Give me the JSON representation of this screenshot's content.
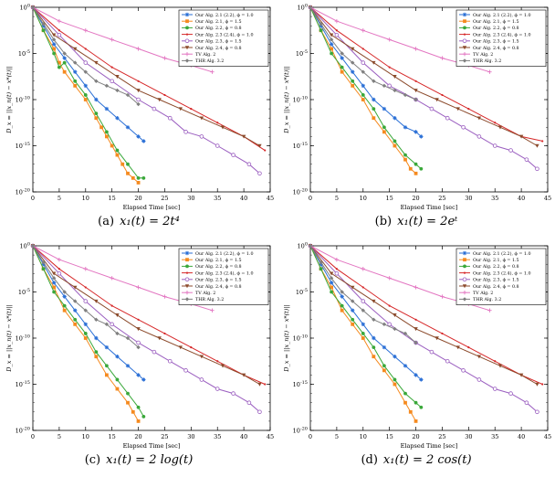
{
  "shared": {
    "xlabel": "Elapsed Time [sec]",
    "ylabel": "D_x = ||x_n(t) − x*(t)||",
    "ylim_exp": [
      -20,
      0
    ],
    "ytick_exps": [
      0,
      -5,
      -10,
      -15,
      -20
    ],
    "xlim": [
      0,
      45
    ],
    "xticks": [
      0,
      5,
      10,
      15,
      20,
      25,
      30,
      35,
      40,
      45
    ],
    "legend_placement": "top-right",
    "series_styles": [
      {
        "name": "Our Alg. 2.1 (2.2), ϕ = 1.0",
        "color": "#2a6fd6",
        "marker": "star"
      },
      {
        "name": "Our Alg. 2.1, ϕ = 1.5",
        "color": "#f58a1f",
        "marker": "square"
      },
      {
        "name": "Our Alg. 2.2, ϕ = 0.8",
        "color": "#3aa83a",
        "marker": "circle"
      },
      {
        "name": "Our Alg. 2.3 (2.4), ϕ = 1.0",
        "color": "#d62728",
        "marker": "dot"
      },
      {
        "name": "Our Alg. 2.3, ϕ = 1.5",
        "color": "#9b5fc0",
        "marker": "circle-open"
      },
      {
        "name": "Our Alg. 2.4, ϕ = 0.8",
        "color": "#8b4a2b",
        "marker": "triangle-down"
      },
      {
        "name": "TV Alg. 2",
        "color": "#e377c2",
        "marker": "plus"
      },
      {
        "name": "THR Alg. 3.2",
        "color": "#808080",
        "marker": "diamond"
      }
    ]
  },
  "captions": [
    {
      "label": "(a)",
      "formula": "x₁(t) = 2t⁴"
    },
    {
      "label": "(b)",
      "formula": "x₁(t) = 2eᵗ"
    },
    {
      "label": "(c)",
      "formula": "x₁(t) = 2 log(t)"
    },
    {
      "label": "(d)",
      "formula": "x₁(t) = 2 cos(t)"
    }
  ],
  "chart_data": [
    {
      "type": "line",
      "title": "",
      "xlabel": "Elapsed Time [sec]",
      "ylabel": "D_x = ||x_n(t) − x*(t)||",
      "y_scale": "log10",
      "series": [
        {
          "name": "Our Alg. 2.1 (2.2), ϕ = 1.0",
          "x": [
            0,
            2,
            4,
            6,
            8,
            10,
            12,
            14,
            16,
            18,
            20,
            21
          ],
          "y_exp": [
            0,
            -2,
            -4,
            -5.5,
            -7,
            -8.5,
            -10,
            -11,
            -12,
            -13,
            -14,
            -14.5
          ]
        },
        {
          "name": "Our Alg. 2.1, ϕ = 1.5",
          "x": [
            0,
            2,
            4,
            5,
            6,
            8,
            10,
            12,
            13,
            14,
            15,
            16,
            17,
            18,
            19,
            20
          ],
          "y_exp": [
            0,
            -2.5,
            -4.5,
            -6,
            -7,
            -8.5,
            -10,
            -12,
            -13,
            -14,
            -15,
            -16,
            -17,
            -18,
            -18.5,
            -19
          ]
        },
        {
          "name": "Our Alg. 2.2, ϕ = 0.8",
          "x": [
            0,
            2,
            4,
            5,
            6,
            8,
            10,
            12,
            14,
            16,
            18,
            20,
            21
          ],
          "y_exp": [
            0,
            -2.5,
            -5,
            -6.5,
            -6,
            -8,
            -9.5,
            -11.5,
            -13.5,
            -15.5,
            -17,
            -18.5,
            -18.5
          ]
        },
        {
          "name": "Our Alg. 2.3 (2.4), ϕ = 1.0",
          "x": [
            0,
            5,
            10,
            15,
            20,
            25,
            30,
            35,
            40,
            44
          ],
          "y_exp": [
            0,
            -2.5,
            -4.5,
            -6.5,
            -8,
            -9.5,
            -11,
            -12.5,
            -14,
            -15.5
          ]
        },
        {
          "name": "Our Alg. 2.3, ϕ = 1.5",
          "x": [
            0,
            5,
            10,
            15,
            20,
            23,
            26,
            29,
            32,
            35,
            38,
            41,
            43
          ],
          "y_exp": [
            0,
            -3,
            -6,
            -8,
            -10,
            -11,
            -12,
            -13.5,
            -14,
            -15,
            -16,
            -17,
            -18
          ]
        },
        {
          "name": "Our Alg. 2.4, ϕ = 0.8",
          "x": [
            0,
            4,
            8,
            12,
            16,
            20,
            24,
            28,
            32,
            36,
            40,
            43
          ],
          "y_exp": [
            0,
            -3,
            -4.5,
            -6,
            -7.5,
            -9,
            -10,
            -11,
            -12,
            -13,
            -14,
            -15
          ]
        },
        {
          "name": "TV Alg. 2",
          "x": [
            0,
            5,
            10,
            15,
            20,
            25,
            30,
            34
          ],
          "y_exp": [
            0,
            -1.5,
            -2.5,
            -3.5,
            -4.5,
            -5.5,
            -6.3,
            -7
          ]
        },
        {
          "name": "THR Alg. 3.2",
          "x": [
            0,
            2,
            4,
            6,
            8,
            10,
            12,
            14,
            16,
            18,
            20
          ],
          "y_exp": [
            0,
            -1.8,
            -3.5,
            -5,
            -6,
            -7,
            -8,
            -8.5,
            -9,
            -9.5,
            -10.5
          ]
        }
      ]
    },
    {
      "type": "line",
      "title": "",
      "xlabel": "Elapsed Time [sec]",
      "ylabel": "D_x = ||x_n(t) − x*(t)||",
      "y_scale": "log10",
      "series": [
        {
          "name": "Our Alg. 2.1 (2.2), ϕ = 1.0",
          "x": [
            0,
            2,
            4,
            6,
            8,
            10,
            12,
            14,
            16,
            18,
            20,
            21
          ],
          "y_exp": [
            0,
            -2,
            -4,
            -5.5,
            -7,
            -8.5,
            -10,
            -11,
            -12,
            -13,
            -13.5,
            -14
          ]
        },
        {
          "name": "Our Alg. 2.1, ϕ = 1.5",
          "x": [
            0,
            2,
            4,
            6,
            8,
            10,
            12,
            14,
            16,
            18,
            19,
            20
          ],
          "y_exp": [
            0,
            -2.5,
            -4.5,
            -7,
            -8.5,
            -10,
            -12,
            -13.5,
            -15,
            -16.5,
            -17.5,
            -18
          ]
        },
        {
          "name": "Our Alg. 2.2, ϕ = 0.8",
          "x": [
            0,
            2,
            4,
            6,
            8,
            10,
            12,
            14,
            16,
            18,
            20,
            21
          ],
          "y_exp": [
            0,
            -2.5,
            -5,
            -6.5,
            -8,
            -9.5,
            -11,
            -13,
            -14.5,
            -16,
            -17,
            -17.5
          ]
        },
        {
          "name": "Our Alg. 2.3 (2.4), ϕ = 1.0",
          "x": [
            0,
            5,
            10,
            15,
            20,
            25,
            30,
            35,
            40,
            44
          ],
          "y_exp": [
            0,
            -2.5,
            -4.5,
            -6.5,
            -8,
            -9.5,
            -11,
            -12.5,
            -14,
            -14.5
          ]
        },
        {
          "name": "Our Alg. 2.3, ϕ = 1.5",
          "x": [
            0,
            5,
            10,
            15,
            20,
            23,
            26,
            29,
            32,
            35,
            38,
            41,
            43
          ],
          "y_exp": [
            0,
            -3,
            -6,
            -8.5,
            -10,
            -11,
            -12,
            -13,
            -14,
            -15,
            -15.5,
            -16.5,
            -17.5
          ]
        },
        {
          "name": "Our Alg. 2.4, ϕ = 0.8",
          "x": [
            0,
            4,
            8,
            12,
            16,
            20,
            24,
            28,
            32,
            36,
            40,
            43
          ],
          "y_exp": [
            0,
            -3,
            -4.5,
            -6,
            -7.5,
            -9,
            -10,
            -11,
            -12,
            -13,
            -14,
            -15
          ]
        },
        {
          "name": "TV Alg. 2",
          "x": [
            0,
            5,
            10,
            15,
            20,
            25,
            30,
            34
          ],
          "y_exp": [
            0,
            -1.5,
            -2.5,
            -3.5,
            -4.5,
            -5.5,
            -6.3,
            -7
          ]
        },
        {
          "name": "THR Alg. 3.2",
          "x": [
            0,
            2,
            4,
            6,
            8,
            10,
            12,
            14,
            16,
            18,
            20
          ],
          "y_exp": [
            0,
            -1.8,
            -3.5,
            -5,
            -6,
            -7,
            -8,
            -8.5,
            -9,
            -9.5,
            -10
          ]
        }
      ]
    },
    {
      "type": "line",
      "title": "",
      "xlabel": "Elapsed Time [sec]",
      "ylabel": "D_x = ||x_n(t) − x*(t)||",
      "y_scale": "log10",
      "series": [
        {
          "name": "Our Alg. 2.1 (2.2), ϕ = 1.0",
          "x": [
            0,
            2,
            4,
            6,
            8,
            10,
            12,
            14,
            16,
            18,
            20,
            21
          ],
          "y_exp": [
            0,
            -2,
            -4,
            -5.5,
            -7,
            -8.5,
            -10,
            -11,
            -12,
            -13,
            -14,
            -14.5
          ]
        },
        {
          "name": "Our Alg. 2.1, ϕ = 1.5",
          "x": [
            0,
            2,
            4,
            6,
            8,
            10,
            12,
            14,
            16,
            18,
            19,
            20
          ],
          "y_exp": [
            0,
            -2.5,
            -4.5,
            -7,
            -8.5,
            -10,
            -12,
            -14,
            -15.5,
            -17,
            -18,
            -19
          ]
        },
        {
          "name": "Our Alg. 2.2, ϕ = 0.8",
          "x": [
            0,
            2,
            4,
            6,
            8,
            10,
            12,
            14,
            16,
            18,
            20,
            21
          ],
          "y_exp": [
            0,
            -2.5,
            -5,
            -6.5,
            -8,
            -9.5,
            -11.5,
            -13,
            -14.5,
            -16,
            -17.5,
            -18.5
          ]
        },
        {
          "name": "Our Alg. 2.3 (2.4), ϕ = 1.0",
          "x": [
            0,
            5,
            10,
            15,
            20,
            25,
            30,
            35,
            40,
            44
          ],
          "y_exp": [
            0,
            -2.5,
            -4.5,
            -6.5,
            -8,
            -9.5,
            -11,
            -12.5,
            -14,
            -15
          ]
        },
        {
          "name": "Our Alg. 2.3, ϕ = 1.5",
          "x": [
            0,
            5,
            10,
            15,
            20,
            23,
            26,
            29,
            32,
            35,
            38,
            41,
            43
          ],
          "y_exp": [
            0,
            -3,
            -6,
            -8.5,
            -10.5,
            -11.5,
            -12.5,
            -13.5,
            -14.5,
            -15.5,
            -16,
            -17,
            -18
          ]
        },
        {
          "name": "Our Alg. 2.4, ϕ = 0.8",
          "x": [
            0,
            4,
            8,
            12,
            16,
            20,
            24,
            28,
            32,
            36,
            40,
            43
          ],
          "y_exp": [
            0,
            -3,
            -4.5,
            -6,
            -7.5,
            -9,
            -10,
            -11,
            -12,
            -13,
            -14,
            -15
          ]
        },
        {
          "name": "TV Alg. 2",
          "x": [
            0,
            5,
            10,
            15,
            20,
            25,
            30,
            34
          ],
          "y_exp": [
            0,
            -1.5,
            -2.5,
            -3.5,
            -4.5,
            -5.5,
            -6.3,
            -7
          ]
        },
        {
          "name": "THR Alg. 3.2",
          "x": [
            0,
            2,
            4,
            6,
            8,
            10,
            12,
            14,
            16,
            18,
            20
          ],
          "y_exp": [
            0,
            -1.8,
            -3.5,
            -5,
            -6,
            -7,
            -8,
            -8.5,
            -9.5,
            -10,
            -11
          ]
        }
      ]
    },
    {
      "type": "line",
      "title": "",
      "xlabel": "Elapsed Time [sec]",
      "ylabel": "D_x = ||x_n(t) − x*(t)||",
      "y_scale": "log10",
      "series": [
        {
          "name": "Our Alg. 2.1 (2.2), ϕ = 1.0",
          "x": [
            0,
            2,
            4,
            6,
            8,
            10,
            12,
            14,
            16,
            18,
            20,
            21
          ],
          "y_exp": [
            0,
            -2,
            -4,
            -5.5,
            -7,
            -8.5,
            -10,
            -11,
            -12,
            -13,
            -14,
            -14.5
          ]
        },
        {
          "name": "Our Alg. 2.1, ϕ = 1.5",
          "x": [
            0,
            2,
            4,
            6,
            8,
            10,
            12,
            14,
            16,
            18,
            19,
            20
          ],
          "y_exp": [
            0,
            -2.5,
            -4.5,
            -7,
            -8.5,
            -10,
            -12,
            -13.5,
            -15,
            -17,
            -18,
            -19
          ]
        },
        {
          "name": "Our Alg. 2.2, ϕ = 0.8",
          "x": [
            0,
            2,
            4,
            6,
            8,
            10,
            12,
            14,
            16,
            18,
            20,
            21
          ],
          "y_exp": [
            0,
            -2.5,
            -5,
            -6.5,
            -8,
            -9.5,
            -11,
            -13,
            -14.5,
            -16,
            -17,
            -17.5
          ]
        },
        {
          "name": "Our Alg. 2.3 (2.4), ϕ = 1.0",
          "x": [
            0,
            5,
            10,
            15,
            20,
            25,
            30,
            35,
            40,
            44
          ],
          "y_exp": [
            0,
            -2.5,
            -4.5,
            -6.5,
            -8,
            -9.5,
            -11,
            -12.5,
            -14,
            -15
          ]
        },
        {
          "name": "Our Alg. 2.3, ϕ = 1.5",
          "x": [
            0,
            5,
            10,
            15,
            20,
            23,
            26,
            29,
            32,
            35,
            38,
            41,
            43
          ],
          "y_exp": [
            0,
            -3,
            -6,
            -8.5,
            -10.5,
            -11.5,
            -12.5,
            -13.5,
            -14.5,
            -15.5,
            -16,
            -17,
            -18
          ]
        },
        {
          "name": "Our Alg. 2.4, ϕ = 0.8",
          "x": [
            0,
            4,
            8,
            12,
            16,
            20,
            24,
            28,
            32,
            36,
            40,
            43
          ],
          "y_exp": [
            0,
            -3,
            -4.5,
            -6,
            -7.5,
            -9,
            -10,
            -11,
            -12,
            -13,
            -14,
            -15
          ]
        },
        {
          "name": "TV Alg. 2",
          "x": [
            0,
            5,
            10,
            15,
            20,
            25,
            30,
            34
          ],
          "y_exp": [
            0,
            -1.5,
            -2.5,
            -3.5,
            -4.5,
            -5.5,
            -6.3,
            -7
          ]
        },
        {
          "name": "THR Alg. 3.2",
          "x": [
            0,
            2,
            4,
            6,
            8,
            10,
            12,
            14,
            16,
            18,
            20
          ],
          "y_exp": [
            0,
            -1.8,
            -3.5,
            -5,
            -6,
            -7,
            -8,
            -8.5,
            -9,
            -9.5,
            -10.5
          ]
        }
      ]
    }
  ]
}
